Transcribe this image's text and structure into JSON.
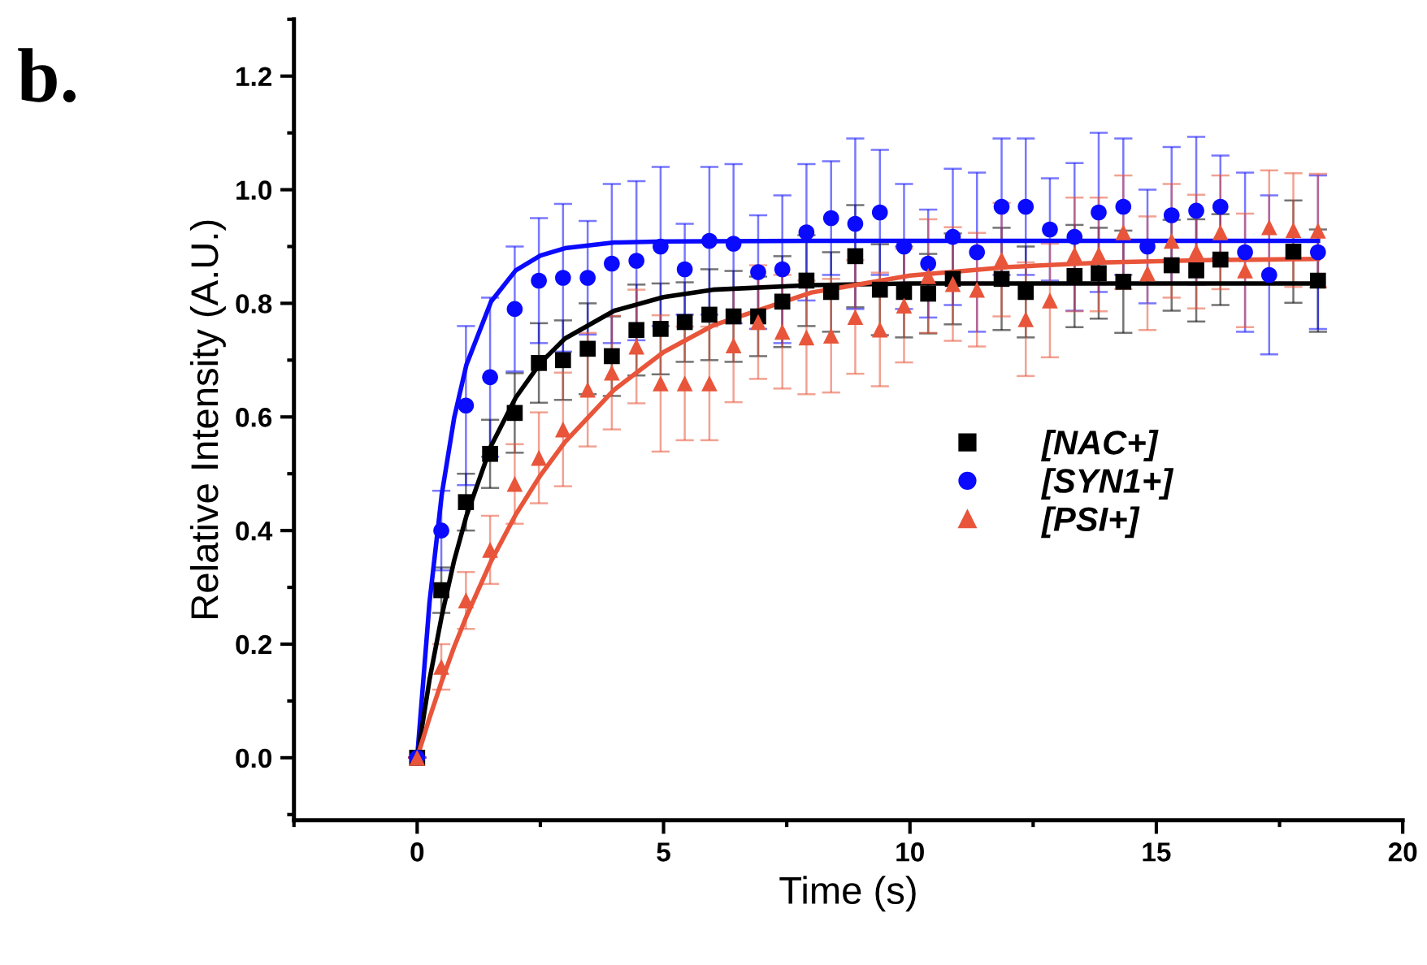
{
  "chart_data": {
    "type": "scatter",
    "xlabel": "Time (s)",
    "ylabel": "Relative Intensity (A.U.)",
    "annotations": [
      "b."
    ],
    "xlim": [
      -2.5,
      20
    ],
    "xticks": [
      0,
      5,
      10,
      15,
      20
    ],
    "ylim": [
      -0.11,
      1.3
    ],
    "yticks": [
      {
        "value": 0,
        "label": "0.0"
      },
      {
        "value": 0.2,
        "label": "0.2"
      },
      {
        "value": 0.4,
        "label": "0.4"
      },
      {
        "value": 0.6,
        "label": "0.6"
      },
      {
        "value": 0.8,
        "label": "0.8"
      },
      {
        "value": 1,
        "label": "1.0"
      },
      {
        "value": 1.2,
        "label": "1.2"
      }
    ],
    "grid": false,
    "legend": "right",
    "x": [
      0,
      0.49,
      0.99,
      1.48,
      1.98,
      2.47,
      2.96,
      3.46,
      3.95,
      4.45,
      4.94,
      5.43,
      5.93,
      6.42,
      6.92,
      7.41,
      7.9,
      8.4,
      8.89,
      9.39,
      9.88,
      10.37,
      10.87,
      11.36,
      11.86,
      12.35,
      12.84,
      13.34,
      13.83,
      14.33,
      14.82,
      15.31,
      15.81,
      16.3,
      16.8,
      17.29,
      17.78,
      18.28
    ],
    "series": [
      {
        "name": "[NAC+]",
        "color": "#000000",
        "marker": "square",
        "values": [
          0,
          0.295,
          0.45,
          0.535,
          0.607,
          0.695,
          0.7,
          0.72,
          0.707,
          0.753,
          0.755,
          0.767,
          0.78,
          0.777,
          0.777,
          0.803,
          0.84,
          0.82,
          0.883,
          0.824,
          0.82,
          0.817,
          0.843,
          null,
          0.843,
          0.82,
          null,
          0.848,
          0.853,
          0.838,
          null,
          0.867,
          0.858,
          0.877,
          null,
          null,
          0.891,
          0.84
        ],
        "errors": [
          null,
          0.04,
          0.05,
          0.06,
          0.07,
          0.07,
          0.07,
          0.08,
          0.07,
          0.08,
          0.08,
          0.07,
          0.08,
          0.08,
          0.07,
          0.08,
          0.08,
          0.07,
          0.09,
          0.08,
          0.08,
          0.07,
          0.08,
          null,
          0.09,
          0.08,
          null,
          0.09,
          0.08,
          0.09,
          null,
          0.08,
          0.09,
          0.08,
          null,
          null,
          0.09,
          0.09
        ]
      },
      {
        "name": "[SYN1+]",
        "color": "#0a0aff",
        "marker": "circle",
        "values": [
          0,
          0.4,
          0.62,
          0.67,
          0.79,
          0.84,
          0.845,
          0.845,
          0.87,
          0.875,
          0.9,
          0.86,
          0.91,
          0.905,
          0.855,
          0.86,
          0.925,
          0.95,
          0.94,
          0.96,
          0.9,
          0.87,
          0.917,
          0.89,
          0.97,
          0.97,
          0.93,
          0.917,
          0.96,
          0.97,
          0.9,
          0.955,
          0.963,
          0.97,
          0.89,
          0.85,
          null,
          0.89
        ],
        "errors": [
          null,
          0.07,
          0.14,
          0.14,
          0.11,
          0.11,
          0.13,
          0.1,
          0.14,
          0.14,
          0.14,
          0.08,
          0.13,
          0.14,
          0.1,
          0.13,
          0.12,
          0.1,
          0.15,
          0.11,
          0.11,
          0.095,
          0.12,
          0.14,
          0.12,
          0.12,
          0.09,
          0.13,
          0.14,
          0.12,
          0.1,
          0.12,
          0.13,
          0.09,
          0.14,
          0.14,
          null,
          0.135
        ]
      },
      {
        "name": "[PSI+]",
        "color": "#e8553a",
        "marker": "triangle",
        "values": [
          0,
          0.16,
          0.277,
          0.366,
          0.482,
          0.528,
          0.578,
          0.648,
          0.678,
          0.724,
          0.659,
          0.659,
          0.659,
          0.726,
          0.767,
          0.75,
          0.74,
          0.743,
          0.776,
          0.754,
          0.796,
          0.848,
          0.834,
          0.824,
          0.877,
          0.772,
          0.805,
          0.886,
          0.886,
          0.925,
          0.853,
          0.91,
          0.891,
          0.925,
          0.858,
          0.934,
          0.929,
          0.928
        ],
        "errors": [
          null,
          0.04,
          0.05,
          0.06,
          0.07,
          0.08,
          0.1,
          0.1,
          0.1,
          0.1,
          0.12,
          0.1,
          0.1,
          0.1,
          0.1,
          0.1,
          0.1,
          0.1,
          0.1,
          0.1,
          0.1,
          0.1,
          0.1,
          0.1,
          0.1,
          0.1,
          0.1,
          0.1,
          0.1,
          0.1,
          0.1,
          0.1,
          0.1,
          0.1,
          0.1,
          0.1,
          0.1,
          0.1
        ]
      },
      {
        "type": "line",
        "color": "#0a0aff",
        "marker": "none",
        "x": [
          0,
          0.25,
          0.5,
          0.75,
          1,
          1.5,
          2,
          2.5,
          3,
          4,
          5,
          8,
          12,
          16,
          18.28
        ],
        "values": [
          0,
          0.273,
          0.464,
          0.598,
          0.692,
          0.803,
          0.858,
          0.884,
          0.897,
          0.907,
          0.909,
          0.91,
          0.91,
          0.91,
          0.91
        ]
      },
      {
        "type": "line",
        "color": "#000000",
        "marker": "none",
        "x": [
          0,
          0.25,
          0.5,
          0.75,
          1,
          1.5,
          2,
          2.5,
          3,
          4,
          5,
          6,
          8,
          10,
          14,
          18.28
        ],
        "values": [
          0,
          0.137,
          0.25,
          0.347,
          0.426,
          0.549,
          0.634,
          0.695,
          0.738,
          0.787,
          0.811,
          0.824,
          0.832,
          0.835,
          0.835,
          0.835
        ]
      },
      {
        "type": "line",
        "color": "#e8553a",
        "marker": "none",
        "x": [
          0,
          0.25,
          0.5,
          0.75,
          1,
          1.5,
          2,
          2.5,
          3,
          4,
          5,
          6,
          8,
          10,
          12,
          14,
          16,
          18.28
        ],
        "values": [
          0,
          0.07,
          0.135,
          0.195,
          0.249,
          0.346,
          0.428,
          0.497,
          0.556,
          0.648,
          0.714,
          0.761,
          0.819,
          0.849,
          0.864,
          0.872,
          0.876,
          0.878
        ]
      }
    ]
  }
}
